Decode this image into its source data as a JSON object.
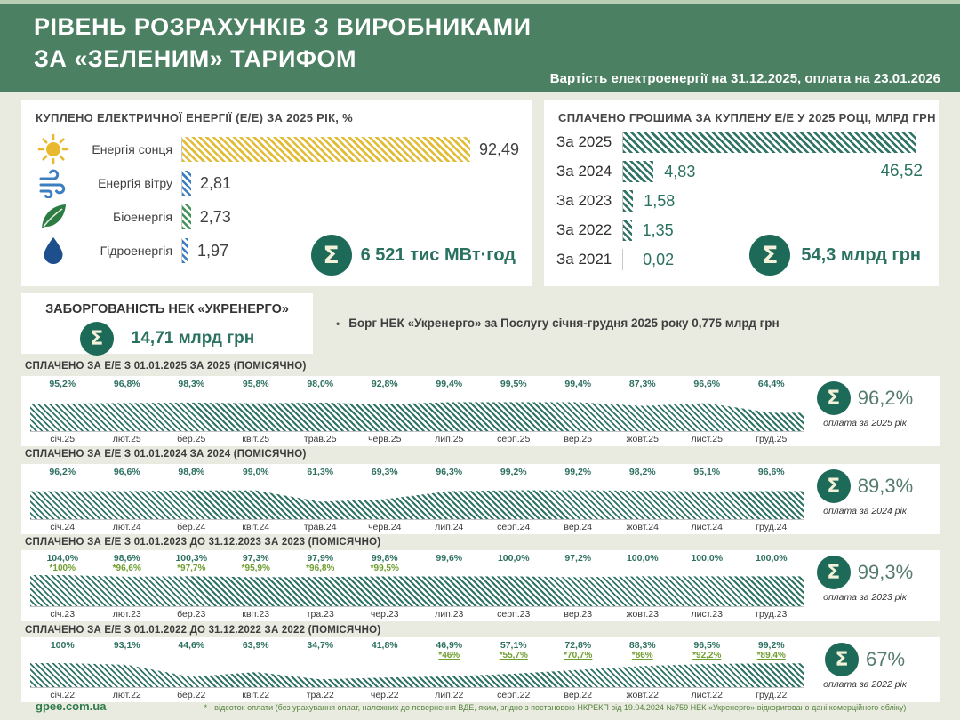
{
  "header": {
    "title_line1": "РІВЕНЬ РОЗРАХУНКІВ З ВИРОБНИКАМИ",
    "title_line2": "ЗА «ЗЕЛЕНИМ» ТАРИФОМ",
    "subtitle": "Вартість електроенергії на 31.12.2025, оплата на 23.01.2026"
  },
  "debt": {
    "title": "ЗАБОРГОВАНІСТЬ НЕК «УКРЕНЕРГО»",
    "total": "14,71 млрд грн",
    "note": "Борг НЕК «Укренерго» за Послугу січня-грудня 2025 року 0,775 млрд грн"
  },
  "footer": {
    "site": "gpee.com.ua",
    "footnote": "* - відсоток оплати (без урахування оплат, належних до повернення ВДЕ, яким, згідно з постановою НКРЕКП від 19.04.2024 №759 НЕК «Укренерго» відкориговано дані комерційного обліку)"
  },
  "colors": {
    "header_green": "#4b8062",
    "teal": "#2f7465",
    "sigma_circle": "#1e6a58",
    "solar_yellow": "#e2bc35",
    "wind_blue": "#3d7ec0",
    "bio_green": "#44935a",
    "hydro_blue": "#3d7ec0",
    "alt_value_green": "#6f9e2f"
  },
  "chart_data": [
    {
      "type": "bar",
      "orientation": "horizontal",
      "title": "КУПЛЕНО ЕЛЕКТРИЧНОЇ ЕНЕРГІЇ (Е/Е) ЗА 2025 РІК, %",
      "categories": [
        "Енергія сонця",
        "Енергія вітру",
        "Біоенергія",
        "Гідроенергія"
      ],
      "icons": [
        "sun-icon",
        "wind-icon",
        "leaf-icon",
        "drop-icon"
      ],
      "values": [
        92.49,
        2.81,
        2.73,
        1.97
      ],
      "value_labels": [
        "92,49",
        "2,81",
        "2,73",
        "1,97"
      ],
      "bar_colors": [
        "#e2bc35",
        "#3d7ec0",
        "#44935a",
        "#3d7ec0"
      ],
      "xlim": [
        0,
        106
      ],
      "total": "6 521 тис МВт·год"
    },
    {
      "type": "bar",
      "orientation": "horizontal",
      "title": "СПЛАЧЕНО ГРОШИМА ЗА КУПЛЕНУ Е/Е У 2025 РОЦІ, МЛРД ГРН",
      "categories": [
        "За 2025",
        "За 2024",
        "За 2023",
        "За 2022",
        "За 2021"
      ],
      "values": [
        46.52,
        4.83,
        1.58,
        1.35,
        0.02
      ],
      "value_labels": [
        "46,52",
        "4,83",
        "1,58",
        "1,35",
        "0,02"
      ],
      "bar_color": "#2f7465",
      "xlim": [
        0,
        48
      ],
      "total": "54,3 млрд грн"
    },
    {
      "type": "area",
      "title": "СПЛАЧЕНО ЗА Е/Е З 01.01.2025 ЗА 2025  (ПОМІСЯЧНО)",
      "categories": [
        "січ.25",
        "лют.25",
        "бер.25",
        "квіт.25",
        "трав.25",
        "черв.25",
        "лип.25",
        "серп.25",
        "вер.25",
        "жовт.25",
        "лист.25",
        "груд.25"
      ],
      "values": [
        95.2,
        96.8,
        98.3,
        95.8,
        98.0,
        92.8,
        99.4,
        99.5,
        99.4,
        87.3,
        96.6,
        64.4
      ],
      "value_labels": [
        "95,2%",
        "96,8%",
        "98,3%",
        "95,8%",
        "98,0%",
        "92,8%",
        "99,4%",
        "99,5%",
        "99,4%",
        "87,3%",
        "96,6%",
        "64,4%"
      ],
      "ylim": [
        0,
        107
      ],
      "fill_color": "#2f7465",
      "total": "96,2%",
      "total_caption": "оплата за 2025 рік"
    },
    {
      "type": "area",
      "title": "СПЛАЧЕНО ЗА Е/Е З 01.01.2024 ЗА 2024  (ПОМІСЯЧНО)",
      "categories": [
        "січ.24",
        "лют.24",
        "бер.24",
        "квіт.24",
        "трав.24",
        "черв.24",
        "лип.24",
        "серп.24",
        "вер.24",
        "жовт.24",
        "лист.24",
        "груд.24"
      ],
      "values": [
        96.2,
        96.6,
        98.8,
        99.0,
        61.3,
        69.3,
        96.3,
        99.2,
        99.2,
        98.2,
        95.1,
        96.6
      ],
      "value_labels": [
        "96,2%",
        "96,6%",
        "98,8%",
        "99,0%",
        "61,3%",
        "69,3%",
        "96,3%",
        "99,2%",
        "99,2%",
        "98,2%",
        "95,1%",
        "96,6%"
      ],
      "ylim": [
        0,
        107
      ],
      "fill_color": "#2f7465",
      "total": "89,3%",
      "total_caption": "оплата за 2024 рік"
    },
    {
      "type": "area",
      "title": "СПЛАЧЕНО ЗА Е/Е З 01.01.2023 ДО 31.12.2023 ЗА 2023  (ПОМІСЯЧНО)",
      "categories": [
        "січ.23",
        "лют.23",
        "бер.23",
        "квіт.23",
        "тра.23",
        "чер.23",
        "лип.23",
        "серп.23",
        "вер.23",
        "жовт.23",
        "лист.23",
        "груд.23"
      ],
      "values": [
        104.0,
        98.6,
        100.3,
        97.3,
        97.9,
        99.8,
        99.6,
        100.0,
        97.2,
        100.0,
        100.0,
        100.0
      ],
      "value_labels": [
        "104,0%",
        "98,6%",
        "100,3%",
        "97,3%",
        "97,9%",
        "99,8%",
        "99,6%",
        "100,0%",
        "97,2%",
        "100,0%",
        "100,0%",
        "100,0%"
      ],
      "alt_value_labels": [
        "*100%",
        "*96,6%",
        "*97,7%",
        "*95,9%",
        "*96,8%",
        "*99,5%",
        null,
        null,
        null,
        null,
        null,
        null
      ],
      "ylim": [
        0,
        107
      ],
      "fill_color": "#2f7465",
      "total": "99,3%",
      "total_caption": "оплата за 2023 рік"
    },
    {
      "type": "area",
      "title": "СПЛАЧЕНО ЗА Е/Е З 01.01.2022 ДО 31.12.2022 ЗА 2022 (ПОМІСЯЧНО)",
      "categories": [
        "січ.22",
        "лют.22",
        "бер.22",
        "квіт.22",
        "тра.22",
        "чер.22",
        "лип.22",
        "серп.22",
        "вер.22",
        "жовт.22",
        "лист.22",
        "груд.22"
      ],
      "values": [
        100,
        93.1,
        44.6,
        63.9,
        34.7,
        41.8,
        46.9,
        57.1,
        72.8,
        88.3,
        96.5,
        99.2
      ],
      "value_labels": [
        "100%",
        "93,1%",
        "44,6%",
        "63,9%",
        "34,7%",
        "41,8%",
        "46,9%",
        "57,1%",
        "72,8%",
        "88,3%",
        "96,5%",
        "99,2%"
      ],
      "alt_value_labels": [
        null,
        null,
        null,
        null,
        null,
        null,
        "*46%",
        "*55,7%",
        "*70,7%",
        "*86%",
        "*92,2%",
        "*89,4%"
      ],
      "ylim": [
        0,
        107
      ],
      "fill_color": "#2f7465",
      "total": "67%",
      "total_caption": "оплата за 2022 рік"
    }
  ]
}
